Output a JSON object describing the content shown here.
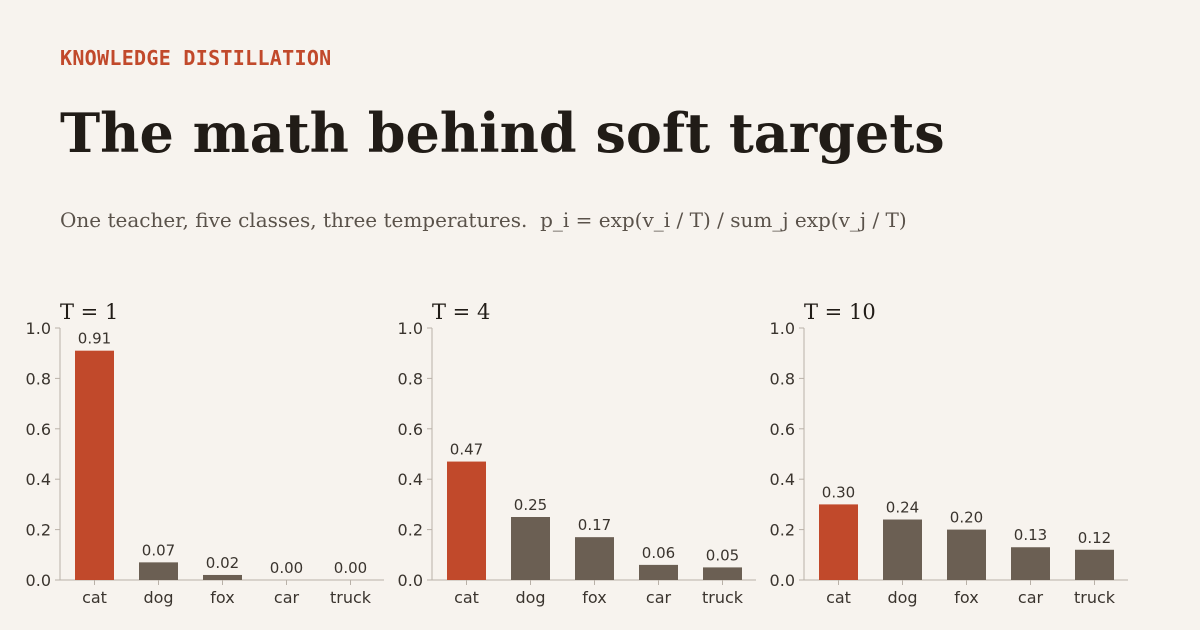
{
  "header": {
    "eyebrow": "KNOWLEDGE DISTILLATION",
    "title": "The math behind soft targets",
    "subtitle": "One teacher, five classes, three temperatures.  p_i = exp(v_i / T) / sum_j exp(v_j / T)"
  },
  "colors": {
    "background": "#f7f3ee",
    "accent": "#c1492b",
    "bar": "#6b5f53",
    "axis": "#b9b1a8",
    "text": "#211c17"
  },
  "chart_data": [
    {
      "type": "bar",
      "title": "T = 1",
      "categories": [
        "cat",
        "dog",
        "fox",
        "car",
        "truck"
      ],
      "values": [
        0.91,
        0.07,
        0.02,
        0.0,
        0.0
      ],
      "value_labels": [
        "0.91",
        "0.07",
        "0.02",
        "0.00",
        "0.00"
      ],
      "highlight_index": 0,
      "ylim": [
        0,
        1.0
      ],
      "yticks": [
        "0.0",
        "0.2",
        "0.4",
        "0.6",
        "0.8",
        "1.0"
      ],
      "grid": false
    },
    {
      "type": "bar",
      "title": "T = 4",
      "categories": [
        "cat",
        "dog",
        "fox",
        "car",
        "truck"
      ],
      "values": [
        0.47,
        0.25,
        0.17,
        0.06,
        0.05
      ],
      "value_labels": [
        "0.47",
        "0.25",
        "0.17",
        "0.06",
        "0.05"
      ],
      "highlight_index": 0,
      "ylim": [
        0,
        1.0
      ],
      "yticks": [
        "0.0",
        "0.2",
        "0.4",
        "0.6",
        "0.8",
        "1.0"
      ],
      "grid": false
    },
    {
      "type": "bar",
      "title": "T = 10",
      "categories": [
        "cat",
        "dog",
        "fox",
        "car",
        "truck"
      ],
      "values": [
        0.3,
        0.24,
        0.2,
        0.13,
        0.12
      ],
      "value_labels": [
        "0.30",
        "0.24",
        "0.20",
        "0.13",
        "0.12"
      ],
      "highlight_index": 0,
      "ylim": [
        0,
        1.0
      ],
      "yticks": [
        "0.0",
        "0.2",
        "0.4",
        "0.6",
        "0.8",
        "1.0"
      ],
      "grid": false
    }
  ]
}
